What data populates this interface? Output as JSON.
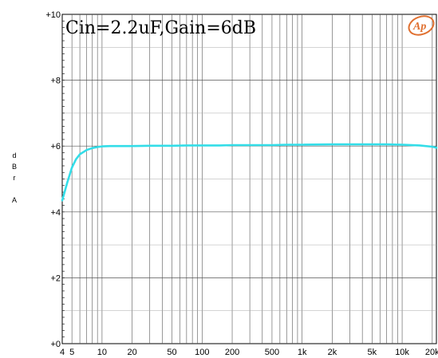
{
  "chart_data": {
    "type": "line",
    "title": "Cin=2.2uF,Gain=6dB",
    "ylabel": [
      "d",
      "B",
      "r",
      "",
      "A"
    ],
    "xlabel": "",
    "x_scale": "log",
    "xlim": [
      4,
      22000
    ],
    "ylim": [
      0,
      10
    ],
    "grid": true,
    "y_ticks": [
      "+0",
      "+2",
      "+4",
      "+6",
      "+8",
      "+10"
    ],
    "y_tick_values": [
      0,
      2,
      4,
      6,
      8,
      10
    ],
    "x_ticks": [
      "4",
      "5",
      "10",
      "20",
      "50",
      "100",
      "200",
      "500",
      "1k",
      "2k",
      "5k",
      "10k",
      "20k"
    ],
    "x_tick_values": [
      4,
      5,
      10,
      20,
      50,
      100,
      200,
      500,
      1000,
      2000,
      5000,
      10000,
      20000
    ],
    "series": [
      {
        "color": "#33dde8",
        "x": [
          4,
          4.5,
          5,
          5.5,
          6,
          7,
          8,
          9,
          10,
          12,
          15,
          20,
          30,
          50,
          70,
          100,
          150,
          200,
          300,
          500,
          700,
          1000,
          2000,
          3000,
          5000,
          7000,
          10000,
          15000,
          20000,
          22000
        ],
        "y": [
          4.35,
          4.9,
          5.35,
          5.6,
          5.75,
          5.88,
          5.94,
          5.97,
          5.99,
          6.0,
          6.0,
          6.0,
          6.01,
          6.01,
          6.02,
          6.02,
          6.02,
          6.03,
          6.03,
          6.03,
          6.04,
          6.04,
          6.05,
          6.05,
          6.05,
          6.05,
          6.04,
          6.02,
          5.98,
          5.95
        ]
      }
    ]
  },
  "logo": {
    "text": "Ap",
    "color": "#e07030"
  }
}
